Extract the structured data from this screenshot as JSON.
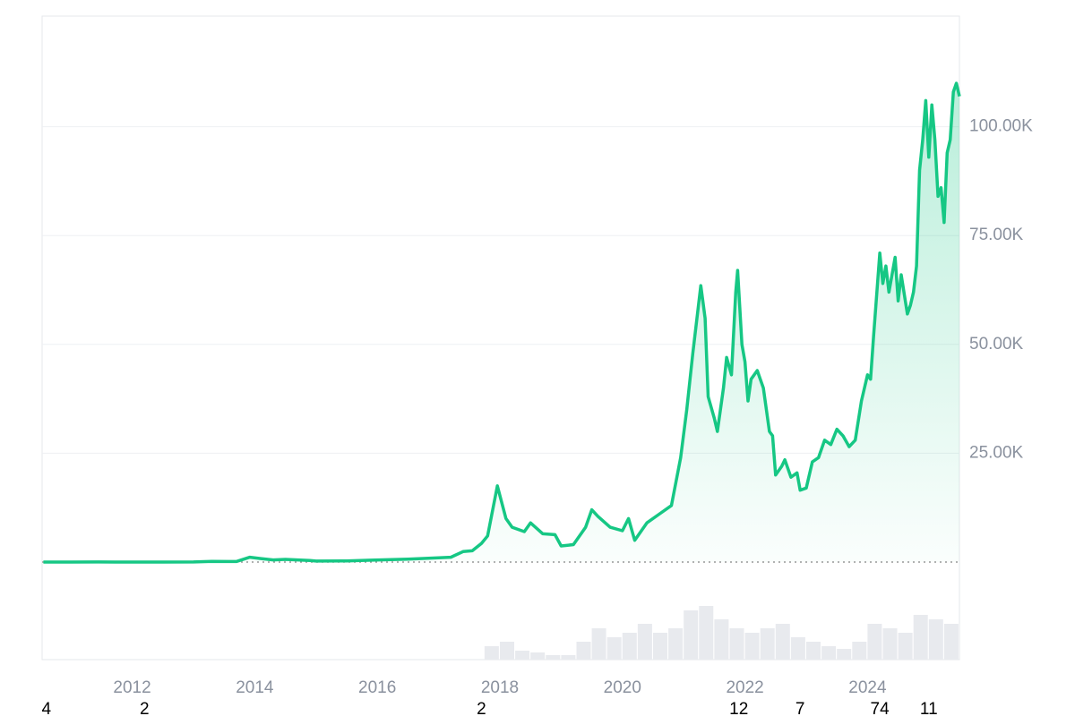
{
  "chart_data": {
    "type": "line",
    "xlim": [
      2010.53,
      2025.5
    ],
    "xticks": [
      2012,
      2014,
      2016,
      2018,
      2020,
      2022,
      2024
    ],
    "ylim": [
      0,
      125000
    ],
    "yticks": [
      {
        "value": 25000,
        "label": "25.00K"
      },
      {
        "value": 50000,
        "label": "50.00K"
      },
      {
        "value": 75000,
        "label": "75.00K"
      },
      {
        "value": 100000,
        "label": "100.00K"
      }
    ],
    "grid": true,
    "baseline": 0.07,
    "series": [
      {
        "color": "#16c784",
        "x": [
          2010.55,
          2011.0,
          2011.45,
          2012.0,
          2012.5,
          2013.0,
          2013.3,
          2013.7,
          2013.92,
          2014.1,
          2014.3,
          2014.5,
          2014.9,
          2015.0,
          2015.5,
          2015.9,
          2016.5,
          2017.0,
          2017.2,
          2017.4,
          2017.55,
          2017.7,
          2017.8,
          2017.96,
          2018.1,
          2018.2,
          2018.4,
          2018.5,
          2018.7,
          2018.9,
          2019.0,
          2019.2,
          2019.4,
          2019.5,
          2019.6,
          2019.8,
          2020.0,
          2020.1,
          2020.2,
          2020.4,
          2020.6,
          2020.8,
          2020.95,
          2021.05,
          2021.15,
          2021.28,
          2021.35,
          2021.4,
          2021.5,
          2021.55,
          2021.65,
          2021.7,
          2021.78,
          2021.85,
          2021.88,
          2021.95,
          2022.0,
          2022.05,
          2022.1,
          2022.2,
          2022.3,
          2022.4,
          2022.45,
          2022.5,
          2022.6,
          2022.65,
          2022.75,
          2022.85,
          2022.9,
          2023.0,
          2023.1,
          2023.2,
          2023.3,
          2023.4,
          2023.5,
          2023.6,
          2023.7,
          2023.8,
          2023.9,
          2024.0,
          2024.05,
          2024.1,
          2024.2,
          2024.25,
          2024.3,
          2024.35,
          2024.45,
          2024.5,
          2024.55,
          2024.65,
          2024.7,
          2024.75,
          2024.8,
          2024.85,
          2024.9,
          2024.95,
          2025.0,
          2025.05,
          2025.1,
          2025.15,
          2025.2,
          2025.25,
          2025.3,
          2025.35,
          2025.4,
          2025.45,
          2025.5
        ],
        "values": [
          0.07,
          0.3,
          15,
          5,
          7,
          13,
          140,
          130,
          1100,
          800,
          500,
          620,
          340,
          220,
          260,
          430,
          650,
          970,
          1100,
          2400,
          2600,
          4300,
          6000,
          17500,
          10000,
          8000,
          7000,
          9000,
          6500,
          6300,
          3700,
          4000,
          8000,
          12000,
          10500,
          8000,
          7200,
          10000,
          5000,
          9000,
          11000,
          13000,
          24000,
          35000,
          48000,
          63500,
          56000,
          38000,
          33000,
          30000,
          40000,
          47000,
          43000,
          62000,
          67000,
          50000,
          46000,
          37000,
          42000,
          44000,
          40000,
          30000,
          29000,
          20000,
          22000,
          23500,
          19500,
          20500,
          16500,
          17000,
          23000,
          24000,
          28000,
          27000,
          30500,
          29000,
          26500,
          28000,
          37000,
          43000,
          42000,
          52000,
          71000,
          64000,
          68000,
          62000,
          70000,
          60000,
          66000,
          57000,
          59000,
          62000,
          68000,
          90000,
          97000,
          106000,
          93000,
          105000,
          97000,
          84000,
          86000,
          78000,
          94000,
          97000,
          108000,
          110000,
          107000
        ]
      }
    ],
    "volume": {
      "color": "#e8eaee",
      "vlim": [
        0,
        100
      ],
      "x": [
        2017.75,
        2018.0,
        2018.25,
        2018.5,
        2018.75,
        2019.0,
        2019.25,
        2019.5,
        2019.75,
        2020.0,
        2020.25,
        2020.5,
        2020.75,
        2021.0,
        2021.25,
        2021.5,
        2021.75,
        2022.0,
        2022.25,
        2022.5,
        2022.75,
        2023.0,
        2023.25,
        2023.5,
        2023.75,
        2024.0,
        2024.25,
        2024.5,
        2024.75,
        2025.0,
        2025.25
      ],
      "values": [
        15,
        20,
        10,
        8,
        5,
        5,
        20,
        35,
        25,
        30,
        40,
        30,
        35,
        55,
        60,
        45,
        35,
        30,
        35,
        40,
        25,
        20,
        15,
        12,
        20,
        40,
        35,
        30,
        50,
        45,
        40
      ]
    },
    "markers": {
      "x": [
        2010.6,
        2012.2,
        2017.7,
        2021.9,
        2022.9,
        2024.2,
        2025.0
      ],
      "values": [
        4,
        2,
        2,
        12,
        7,
        74,
        11
      ]
    }
  }
}
